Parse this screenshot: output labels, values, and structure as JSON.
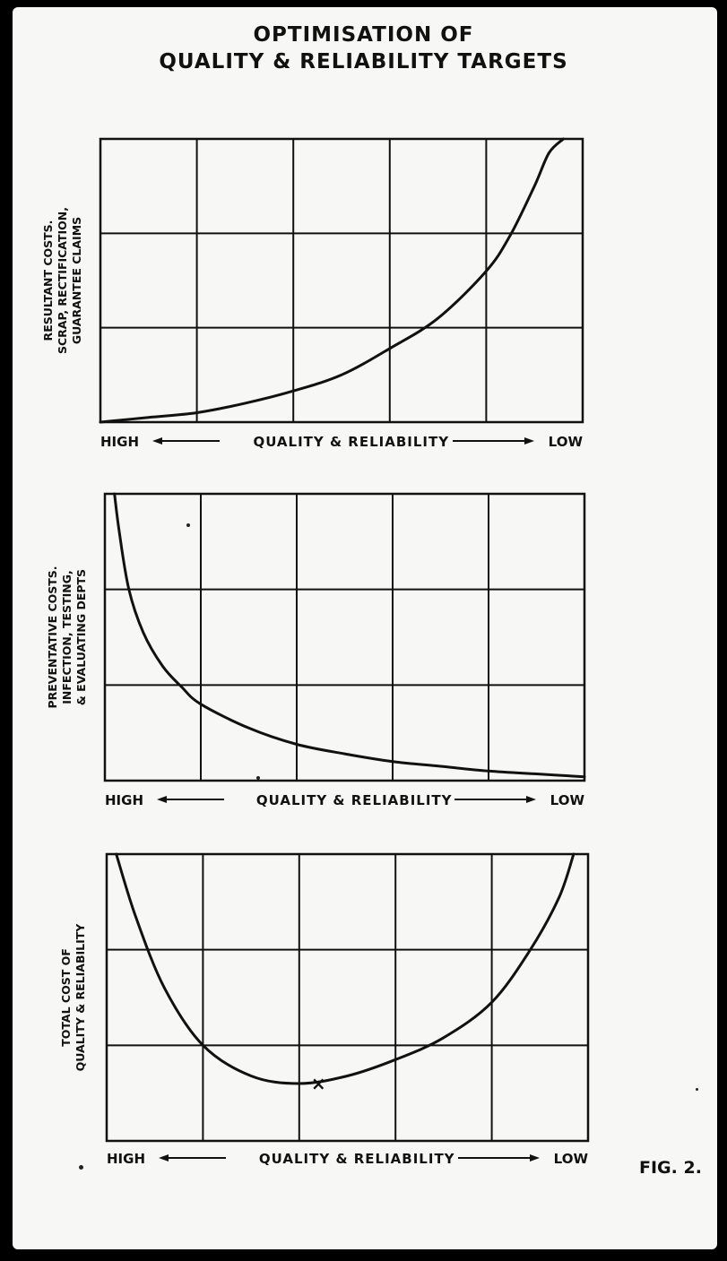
{
  "title": {
    "line1": "OPTIMISATION OF",
    "line2": "QUALITY & RELIABILITY TARGETS"
  },
  "figure_label": "FIG. 2.",
  "colors": {
    "ink": "#111111",
    "paper": "#f7f7f5",
    "background": "#000000"
  },
  "chart_data": [
    {
      "type": "line",
      "ylabel_lines": [
        "RESULTANT COSTS.",
        "SCRAP, RECTIFICATION,",
        "GUARANTEE CLAIMS"
      ],
      "xlabel": "QUALITY & RELIABILITY",
      "x_left": "HIGH",
      "x_right": "LOW",
      "xlim": [
        0,
        5
      ],
      "ylim": [
        0,
        3
      ],
      "grid": true,
      "series": [
        {
          "x": [
            0,
            0.5,
            1.0,
            1.5,
            2.0,
            2.5,
            3.0,
            3.5,
            4.0,
            4.25,
            4.5,
            4.65,
            4.8
          ],
          "y": [
            0.0,
            0.05,
            0.1,
            0.2,
            0.33,
            0.5,
            0.78,
            1.1,
            1.6,
            1.98,
            2.5,
            2.85,
            3.0
          ]
        }
      ]
    },
    {
      "type": "line",
      "ylabel_lines": [
        "PREVENTATIVE COSTS.",
        "INFECTION, TESTING,",
        "& EVALUATING DEPTS"
      ],
      "xlabel": "QUALITY & RELIABILITY",
      "x_left": "HIGH",
      "x_right": "LOW",
      "xlim": [
        0,
        5
      ],
      "ylim": [
        0,
        3
      ],
      "grid": true,
      "series": [
        {
          "x": [
            0.1,
            0.15,
            0.25,
            0.4,
            0.6,
            0.8,
            1.0,
            1.5,
            2.0,
            2.5,
            3.0,
            3.5,
            4.0,
            4.5,
            5.0
          ],
          "y": [
            3.0,
            2.6,
            2.0,
            1.55,
            1.2,
            0.98,
            0.8,
            0.55,
            0.38,
            0.28,
            0.2,
            0.15,
            0.1,
            0.07,
            0.04
          ]
        }
      ]
    },
    {
      "type": "line",
      "ylabel_lines": [
        "TOTAL COST OF",
        "QUALITY & RELIABILITY"
      ],
      "xlabel": "QUALITY & RELIABILITY",
      "x_left": "HIGH",
      "x_right": "LOW",
      "xlim": [
        0,
        5
      ],
      "ylim": [
        0,
        3
      ],
      "grid": true,
      "series": [
        {
          "x": [
            0.1,
            0.3,
            0.6,
            1.0,
            1.5,
            2.0,
            2.5,
            3.0,
            3.5,
            4.0,
            4.4,
            4.7,
            4.85
          ],
          "y": [
            3.0,
            2.35,
            1.6,
            1.0,
            0.68,
            0.6,
            0.68,
            0.85,
            1.08,
            1.45,
            2.0,
            2.55,
            3.0
          ]
        }
      ],
      "marker": {
        "x": 2.2,
        "y": 0.6,
        "symbol": "×"
      }
    }
  ]
}
